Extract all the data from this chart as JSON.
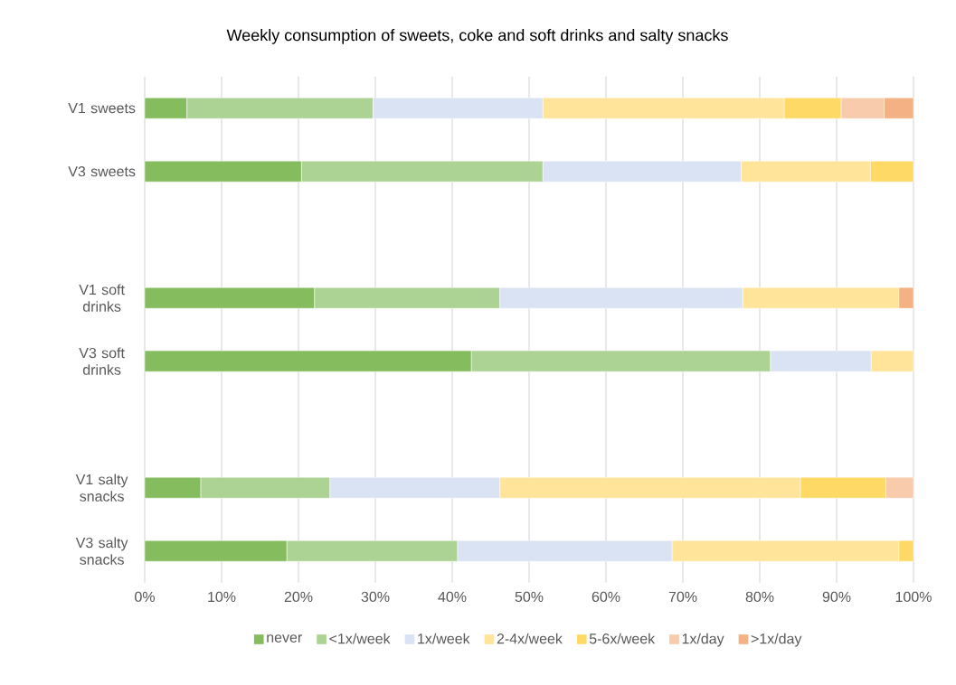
{
  "chart_data": {
    "type": "bar",
    "orientation": "horizontal",
    "stacked": true,
    "title": "Weekly consumption of sweets, coke and soft drinks and salty snacks",
    "categories": [
      "V1 sweets",
      "V3 sweets",
      null,
      "V1 soft drinks",
      "V3 soft drinks",
      null,
      "V1 salty snacks",
      "V3 salty snacks"
    ],
    "series": [
      {
        "name": "never",
        "color": "#84bc5e",
        "values": [
          5.5,
          20.4,
          null,
          22.1,
          42.5,
          null,
          7.3,
          18.5
        ]
      },
      {
        "name": "<1x/week",
        "color": "#acd294",
        "values": [
          24.2,
          31.4,
          null,
          24.1,
          38.9,
          null,
          16.8,
          22.2
        ]
      },
      {
        "name": "1x/week",
        "color": "#dae3f3",
        "values": [
          22.1,
          25.8,
          null,
          31.6,
          13.1,
          null,
          22.1,
          27.9
        ]
      },
      {
        "name": "2-4x/week",
        "color": "#ffe499",
        "values": [
          31.4,
          16.8,
          null,
          20.3,
          5.5,
          null,
          39.1,
          29.5
        ]
      },
      {
        "name": "5-6x/week",
        "color": "#ffd966",
        "values": [
          7.4,
          5.6,
          null,
          0,
          0,
          null,
          11.1,
          1.9
        ]
      },
      {
        "name": "1x/day",
        "color": "#f8cbad",
        "values": [
          5.6,
          0,
          null,
          0,
          0,
          null,
          3.6,
          0
        ]
      },
      {
        "name": ">1x/day",
        "color": "#f4b183",
        "values": [
          3.8,
          0,
          null,
          1.9,
          0,
          null,
          0,
          0
        ]
      }
    ],
    "xlim": [
      0,
      100
    ],
    "xticks": [
      {
        "value": 0,
        "label": "0%"
      },
      {
        "value": 10,
        "label": "10%"
      },
      {
        "value": 20,
        "label": "20%"
      },
      {
        "value": 30,
        "label": "30%"
      },
      {
        "value": 40,
        "label": "40%"
      },
      {
        "value": 50,
        "label": "50%"
      },
      {
        "value": 60,
        "label": "60%"
      },
      {
        "value": 70,
        "label": "70%"
      },
      {
        "value": 80,
        "label": "80%"
      },
      {
        "value": 90,
        "label": "90%"
      },
      {
        "value": 100,
        "label": "100%"
      }
    ],
    "grid": "x",
    "legend": "bottom"
  }
}
